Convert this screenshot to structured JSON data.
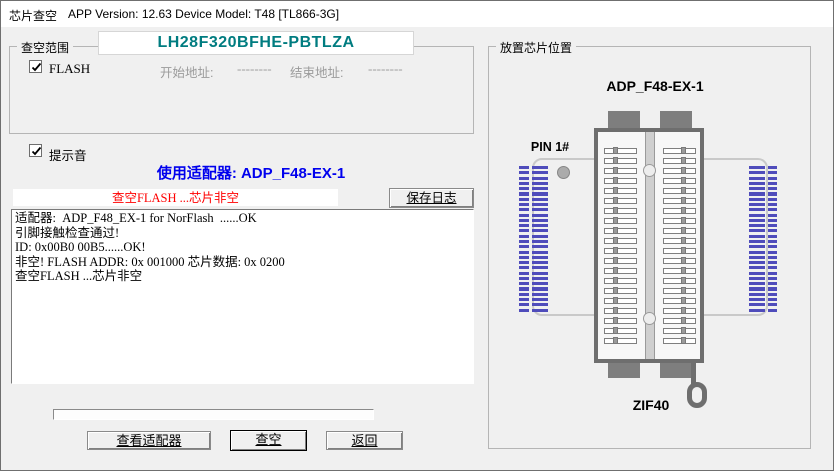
{
  "window": {
    "title": "芯片查空",
    "app_info": "APP Version: 12.63 Device Model: T48 [TL866-3G]"
  },
  "blank_range_group": {
    "label": "查空范围",
    "chip_name": "LH28F320BFHE-PBTLZA",
    "flash_label": "FLASH",
    "flash_checked": true,
    "start_addr_label": "开始地址:",
    "start_addr_value": "--------",
    "end_addr_label": "结束地址:",
    "end_addr_value": "--------"
  },
  "beep": {
    "label": "提示音",
    "checked": true
  },
  "adapter_banner": "使用适配器: ADP_F48-EX-1",
  "status_message": "查空FLASH ...芯片非空",
  "save_log_button": "保存日志",
  "log": {
    "lines": [
      "适配器:  ADP_F48_EX-1 for NorFlash  ......OK",
      "引脚接触检查通过!",
      "ID: 0x00B0 00B5......OK!",
      "非空! FLASH ADDR: 0x 001000 芯片数据: 0x 0200",
      "查空FLASH ...芯片非空"
    ]
  },
  "progress": {
    "value_percent": 0
  },
  "action_buttons": {
    "view_adapter": "查看适配器",
    "blank_check": "查空",
    "back": "返回"
  },
  "placement_group": {
    "label": "放置芯片位置",
    "adapter_name": "ADP_F48-EX-1",
    "pin1_label": "PIN 1#",
    "socket_label": "ZIF40",
    "zif_rows_per_side": 20,
    "header_pin_rows": 28
  },
  "colors": {
    "chip_name": "#007c80",
    "adapter_banner": "#0000ee",
    "status_message": "#ff0000",
    "pin_header_blue": "#4f4cbb",
    "socket_gray": "#6e6e6e",
    "window_bg": "#f0f0f0"
  }
}
